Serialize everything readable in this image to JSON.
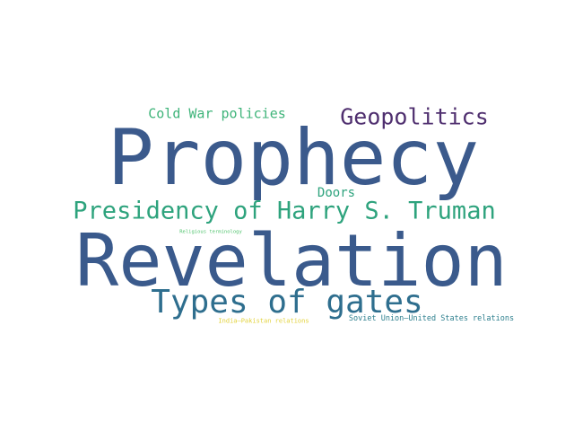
{
  "words": [
    {
      "key": "prophecy",
      "text": "Prophecy",
      "color": "#3b5a8c"
    },
    {
      "key": "revelation",
      "text": "Revelation",
      "color": "#3a5a8c"
    },
    {
      "key": "geopol",
      "text": "Geopolitics",
      "color": "#4f2f6f"
    },
    {
      "key": "coldwar",
      "text": "Cold War policies",
      "color": "#3fb47a"
    },
    {
      "key": "truman",
      "text": "Presidency of Harry S. Truman",
      "color": "#2ea37d"
    },
    {
      "key": "doors",
      "text": "Doors",
      "color": "#2ea37d"
    },
    {
      "key": "gates",
      "text": "Types of gates",
      "color": "#2e6e8e"
    },
    {
      "key": "relterm",
      "text": "Religious terminology",
      "color": "#4cc26a"
    },
    {
      "key": "indopak",
      "text": "India–Pakistan relations",
      "color": "#e2d23a"
    },
    {
      "key": "sovus",
      "text": "Soviet Union–United States relations",
      "color": "#2d7f8e"
    }
  ]
}
